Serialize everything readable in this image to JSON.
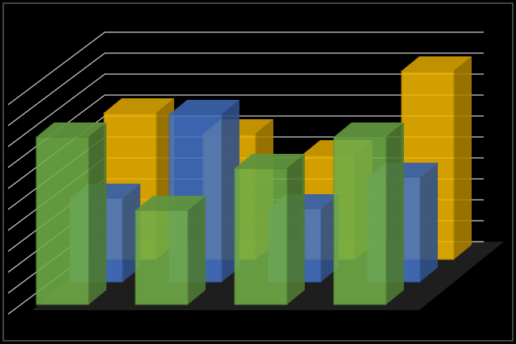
{
  "chart_data": {
    "type": "bar3d",
    "categories": [
      null,
      null,
      null,
      null
    ],
    "series": [
      {
        "color": "#70ad47",
        "values": [
          8,
          4.5,
          6.5,
          8
        ]
      },
      {
        "color": "#4472c4",
        "values": [
          4,
          8,
          3.5,
          5
        ]
      },
      {
        "color": "#f0b400",
        "values": [
          7,
          6,
          5,
          9
        ]
      }
    ],
    "ylim": [
      0,
      10
    ],
    "yticks": [
      0,
      1,
      2,
      3,
      4,
      5,
      6,
      7,
      8,
      9,
      10
    ],
    "grid": true
  }
}
